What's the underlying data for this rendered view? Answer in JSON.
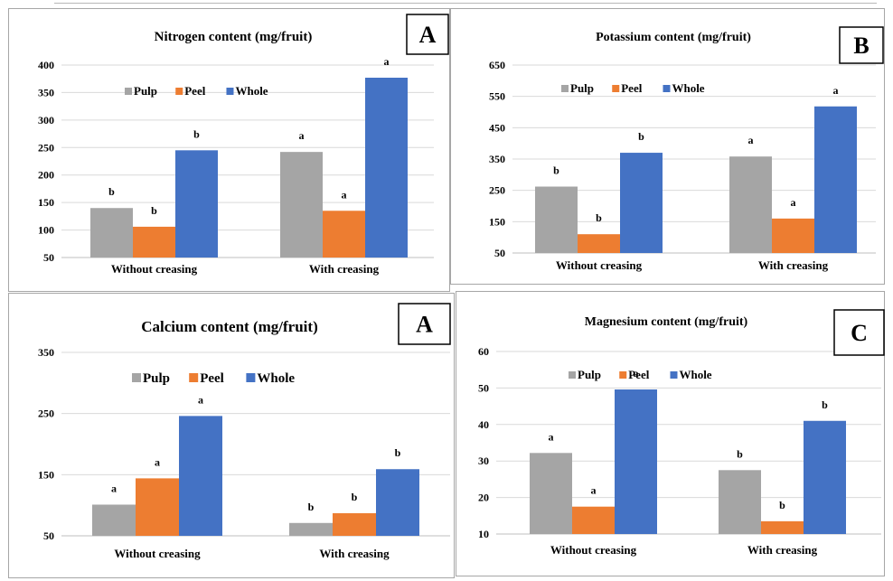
{
  "colors": {
    "Pulp": "#a5a5a5",
    "Peel": "#ed7d31",
    "Whole": "#4472c4",
    "grid": "#d9d9d9"
  },
  "chart_data": [
    {
      "type": "bar",
      "title": "Nitrogen content (mg/fruit)",
      "panel_label": "A",
      "categories": [
        "Without creasing",
        "With creasing"
      ],
      "yticks": [
        50,
        100,
        150,
        200,
        250,
        300,
        350,
        400
      ],
      "ylim": [
        50,
        400
      ],
      "grid": true,
      "legend": "top-left",
      "series": [
        {
          "name": "Pulp",
          "values": [
            140,
            242
          ],
          "labels": [
            "b",
            "a"
          ]
        },
        {
          "name": "Peel",
          "values": [
            106,
            135
          ],
          "labels": [
            "b",
            "a"
          ]
        },
        {
          "name": "Whole",
          "values": [
            245,
            377
          ],
          "labels": [
            "b",
            "a"
          ]
        }
      ]
    },
    {
      "type": "bar",
      "title": "Potassium content (mg/fruit)",
      "panel_label": "B",
      "categories": [
        "Without creasing",
        "With creasing"
      ],
      "yticks": [
        50,
        150,
        250,
        350,
        450,
        550,
        650
      ],
      "ylim": [
        50,
        650
      ],
      "grid": true,
      "legend": "top-left",
      "series": [
        {
          "name": "Pulp",
          "values": [
            262,
            358
          ],
          "labels": [
            "b",
            "a"
          ]
        },
        {
          "name": "Peel",
          "values": [
            110,
            160
          ],
          "labels": [
            "b",
            "a"
          ]
        },
        {
          "name": "Whole",
          "values": [
            370,
            518
          ],
          "labels": [
            "b",
            "a"
          ]
        }
      ]
    },
    {
      "type": "bar",
      "title": "Calcium content (mg/fruit)",
      "panel_label": "A",
      "categories": [
        "Without creasing",
        "With creasing"
      ],
      "yticks": [
        50,
        150,
        250,
        350
      ],
      "ylim": [
        50,
        350
      ],
      "grid": true,
      "legend": "top-left",
      "series": [
        {
          "name": "Pulp",
          "values": [
            101,
            71
          ],
          "labels": [
            "a",
            "b"
          ]
        },
        {
          "name": "Peel",
          "values": [
            144,
            87
          ],
          "labels": [
            "a",
            "b"
          ]
        },
        {
          "name": "Whole",
          "values": [
            246,
            159
          ],
          "labels": [
            "a",
            "b"
          ]
        }
      ]
    },
    {
      "type": "bar",
      "title": "Magnesium content (mg/fruit)",
      "panel_label": "C",
      "categories": [
        "Without creasing",
        "With creasing"
      ],
      "yticks": [
        10,
        20,
        30,
        40,
        50,
        60
      ],
      "ylim": [
        10,
        60
      ],
      "grid": true,
      "legend": "top-left",
      "series": [
        {
          "name": "Pulp",
          "values": [
            32.2,
            27.5
          ],
          "labels": [
            "a",
            "b"
          ]
        },
        {
          "name": "Peel",
          "values": [
            17.5,
            13.5
          ],
          "labels": [
            "a",
            "b"
          ]
        },
        {
          "name": "Whole",
          "values": [
            49.6,
            41.0
          ],
          "labels": [
            "a",
            "b"
          ]
        }
      ]
    }
  ]
}
